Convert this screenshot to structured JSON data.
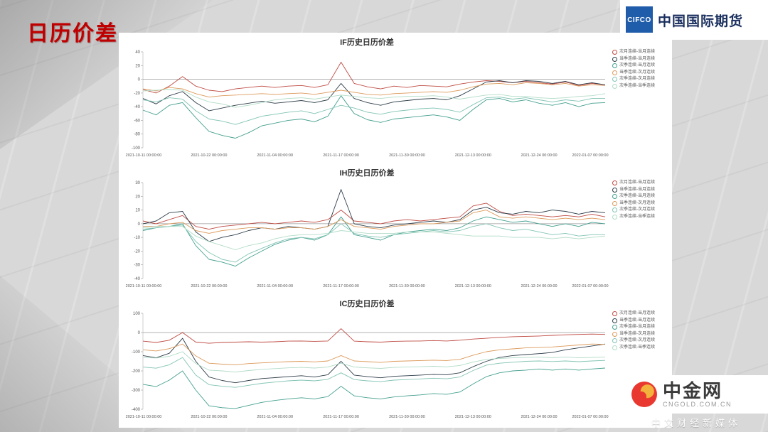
{
  "slide": {
    "title": "日历价差"
  },
  "header_logo": {
    "cifco": "CIFCO",
    "company": "中国国际期货"
  },
  "footer_logo": {
    "name": "中金网",
    "domain": "CNGOLD.COM.CN",
    "tagline": "中文财经新媒体"
  },
  "series_colors": [
    "#bf4b43",
    "#2e3d49",
    "#45a08f",
    "#dc9a5b",
    "#82c4b4",
    "#b2dcc7"
  ],
  "x_tick_labels": [
    "2021-10-11 00:00:00",
    "2021-10-22 00:00:00",
    "2021-11-04 00:00:00",
    "2021-11-17 00:00:00",
    "2021-11-30 00:00:00",
    "2021-12-13 00:00:00",
    "2021-12-24 00:00:00",
    "2022-01-07 00:00:00"
  ],
  "chart_data": [
    {
      "type": "line",
      "title": "IF历史日历价差",
      "ylim": [
        -100,
        40
      ],
      "ytick_step": 20,
      "series": [
        {
          "name": "次月连续-当月连续",
          "values": [
            -15,
            -20,
            -10,
            4,
            -10,
            -16,
            -18,
            -14,
            -12,
            -10,
            -12,
            -10,
            -9,
            -12,
            -8,
            25,
            -6,
            -11,
            -14,
            -10,
            -12,
            -9,
            -10,
            -11,
            -7,
            -4,
            -2,
            -3,
            -5,
            -3,
            -5,
            -7,
            -4,
            -9,
            -6,
            -8
          ]
        },
        {
          "name": "当季连续-当月连续",
          "values": [
            -28,
            -36,
            -24,
            -18,
            -34,
            -46,
            -42,
            -38,
            -35,
            -32,
            -35,
            -33,
            -31,
            -34,
            -30,
            -6,
            -28,
            -34,
            -38,
            -33,
            -31,
            -29,
            -28,
            -30,
            -24,
            -14,
            -4,
            -2,
            -5,
            -2,
            -3,
            -6,
            -3,
            -8,
            -5,
            -8
          ]
        },
        {
          "name": "次季连续-当月连续",
          "values": [
            -45,
            -52,
            -38,
            -34,
            -56,
            -76,
            -82,
            -86,
            -78,
            -68,
            -64,
            -60,
            -58,
            -62,
            -54,
            -24,
            -50,
            -59,
            -63,
            -58,
            -56,
            -54,
            -52,
            -55,
            -60,
            -44,
            -30,
            -28,
            -33,
            -30,
            -35,
            -38,
            -34,
            -40,
            -35,
            -34
          ]
        },
        {
          "name": "当季连续-次月连续",
          "values": [
            -14,
            -17,
            -12,
            -14,
            -21,
            -26,
            -24,
            -23,
            -22,
            -21,
            -22,
            -21,
            -20,
            -22,
            -19,
            -16,
            -19,
            -22,
            -23,
            -21,
            -20,
            -19,
            -18,
            -19,
            -16,
            -11,
            -7,
            -6,
            -8,
            -5,
            -6,
            -8,
            -6,
            -10,
            -8,
            -9
          ]
        },
        {
          "name": "次季连续-次月连续",
          "values": [
            -30,
            -33,
            -27,
            -29,
            -46,
            -58,
            -61,
            -66,
            -60,
            -54,
            -51,
            -48,
            -46,
            -50,
            -44,
            -38,
            -42,
            -48,
            -51,
            -47,
            -45,
            -43,
            -42,
            -44,
            -48,
            -37,
            -27,
            -26,
            -29,
            -27,
            -30,
            -33,
            -30,
            -32,
            -28,
            -28
          ]
        },
        {
          "name": "次季连续-当季连续",
          "values": [
            -17,
            -16,
            -15,
            -16,
            -26,
            -33,
            -36,
            -41,
            -38,
            -34,
            -30,
            -28,
            -27,
            -29,
            -26,
            -23,
            -25,
            -27,
            -28,
            -26,
            -25,
            -25,
            -24,
            -26,
            -29,
            -26,
            -23,
            -22,
            -25,
            -25,
            -27,
            -28,
            -27,
            -25,
            -24,
            -21
          ]
        }
      ]
    },
    {
      "type": "line",
      "title": "IH历史日历价差",
      "ylim": [
        -40,
        30
      ],
      "ytick_step": 10,
      "series": [
        {
          "name": "次月连续-当月连续",
          "values": [
            2,
            0,
            3,
            6,
            -2,
            -4,
            -2,
            -1,
            0,
            1,
            0,
            1,
            2,
            1,
            3,
            10,
            2,
            1,
            0,
            2,
            3,
            2,
            3,
            4,
            5,
            13,
            15,
            9,
            6,
            7,
            6,
            5,
            6,
            5,
            7,
            5
          ]
        },
        {
          "name": "当季连续-当月连续",
          "values": [
            0,
            2,
            8,
            9,
            -6,
            -13,
            -10,
            -8,
            -5,
            -3,
            -4,
            -2,
            -3,
            -4,
            -2,
            25,
            0,
            -2,
            -3,
            -1,
            0,
            1,
            2,
            1,
            3,
            10,
            12,
            8,
            7,
            9,
            8,
            10,
            9,
            7,
            9,
            8
          ]
        },
        {
          "name": "次季连续-当月连续",
          "values": [
            -5,
            -3,
            -2,
            0,
            -16,
            -26,
            -28,
            -31,
            -25,
            -20,
            -15,
            -12,
            -10,
            -12,
            -8,
            5,
            -8,
            -10,
            -12,
            -8,
            -6,
            -5,
            -4,
            -5,
            -3,
            2,
            5,
            3,
            1,
            2,
            0,
            -2,
            0,
            -2,
            1,
            0
          ]
        },
        {
          "name": "当季连续-次月连续",
          "values": [
            -2,
            -2,
            0,
            1,
            -5,
            -7,
            -5,
            -4,
            -3,
            -3,
            -4,
            -3,
            -3,
            -4,
            -2,
            3,
            -2,
            -3,
            -4,
            -2,
            -1,
            0,
            0,
            1,
            2,
            8,
            10,
            5,
            4,
            5,
            4,
            3,
            4,
            3,
            4,
            3
          ]
        },
        {
          "name": "次季连续-次月连续",
          "values": [
            -4,
            -3,
            -2,
            -1,
            -13,
            -21,
            -26,
            -28,
            -22,
            -18,
            -14,
            -11,
            -10,
            -11,
            -8,
            0,
            -7,
            -9,
            -10,
            -8,
            -7,
            -6,
            -5,
            -6,
            -5,
            -2,
            0,
            -3,
            -5,
            -4,
            -6,
            -8,
            -7,
            -9,
            -8,
            -8
          ]
        },
        {
          "name": "次季连续-当季连续",
          "values": [
            -3,
            -2,
            -2,
            -2,
            -9,
            -13,
            -16,
            -19,
            -16,
            -14,
            -11,
            -9,
            -8,
            -8,
            -7,
            -5,
            -6,
            -7,
            -7,
            -7,
            -6,
            -6,
            -6,
            -7,
            -8,
            -9,
            -9,
            -9,
            -10,
            -10,
            -10,
            -11,
            -10,
            -11,
            -10,
            -9
          ]
        }
      ]
    },
    {
      "type": "line",
      "title": "IC历史日历价差",
      "ylim": [
        -400,
        100
      ],
      "ytick_step": 100,
      "series": [
        {
          "name": "次月连续-当月连续",
          "values": [
            -45,
            -52,
            -40,
            0,
            -50,
            -56,
            -52,
            -50,
            -48,
            -50,
            -48,
            -45,
            -44,
            -46,
            -44,
            20,
            -45,
            -48,
            -50,
            -46,
            -45,
            -44,
            -42,
            -44,
            -40,
            -34,
            -30,
            -25,
            -22,
            -20,
            -18,
            -15,
            -12,
            -10,
            -8,
            -10
          ]
        },
        {
          "name": "当季连续-当月连续",
          "values": [
            -120,
            -132,
            -108,
            -30,
            -150,
            -232,
            -250,
            -262,
            -250,
            -240,
            -235,
            -230,
            -225,
            -232,
            -220,
            -150,
            -222,
            -230,
            -236,
            -228,
            -225,
            -222,
            -218,
            -220,
            -210,
            -178,
            -150,
            -130,
            -120,
            -115,
            -110,
            -104,
            -90,
            -80,
            -70,
            -60
          ]
        },
        {
          "name": "次季连续-当月连续",
          "values": [
            -270,
            -282,
            -248,
            -200,
            -300,
            -382,
            -392,
            -396,
            -380,
            -364,
            -354,
            -346,
            -340,
            -346,
            -334,
            -280,
            -330,
            -340,
            -346,
            -336,
            -330,
            -325,
            -318,
            -322,
            -310,
            -268,
            -230,
            -210,
            -200,
            -196,
            -190,
            -196,
            -190,
            -196,
            -190,
            -185
          ]
        },
        {
          "name": "当季连续-次月连续",
          "values": [
            -90,
            -96,
            -84,
            -60,
            -122,
            -160,
            -165,
            -168,
            -162,
            -158,
            -155,
            -152,
            -150,
            -153,
            -148,
            -120,
            -148,
            -152,
            -156,
            -150,
            -148,
            -146,
            -144,
            -146,
            -140,
            -118,
            -100,
            -90,
            -85,
            -80,
            -78,
            -75,
            -70,
            -65,
            -60,
            -62
          ]
        },
        {
          "name": "次季连续-次月连续",
          "values": [
            -180,
            -186,
            -168,
            -130,
            -222,
            -272,
            -280,
            -286,
            -275,
            -265,
            -258,
            -252,
            -248,
            -252,
            -244,
            -210,
            -245,
            -252,
            -256,
            -248,
            -245,
            -242,
            -238,
            -241,
            -232,
            -198,
            -170,
            -160,
            -155,
            -150,
            -148,
            -151,
            -148,
            -152,
            -148,
            -145
          ]
        },
        {
          "name": "次季连续-当季连续",
          "values": [
            -130,
            -133,
            -124,
            -100,
            -162,
            -196,
            -200,
            -206,
            -198,
            -192,
            -188,
            -184,
            -182,
            -185,
            -180,
            -160,
            -180,
            -184,
            -187,
            -182,
            -180,
            -178,
            -176,
            -179,
            -172,
            -154,
            -140,
            -135,
            -132,
            -130,
            -128,
            -131,
            -128,
            -132,
            -130,
            -128
          ]
        }
      ]
    }
  ]
}
